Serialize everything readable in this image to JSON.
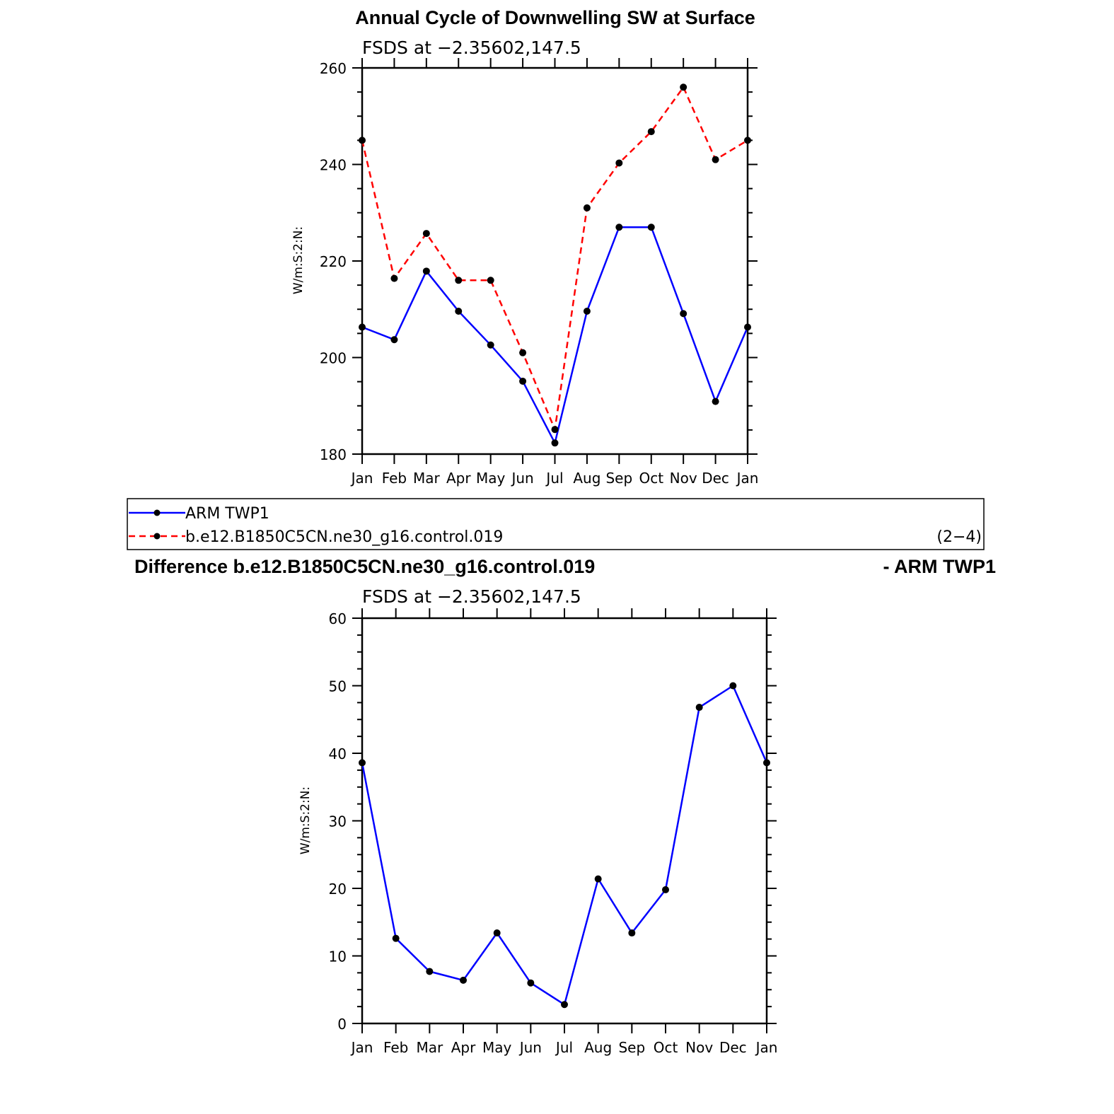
{
  "colors": {
    "obs": "#0000ff",
    "model": "#ff0000",
    "marker": "#000000"
  },
  "chart_data": [
    {
      "type": "line",
      "title": "Annual Cycle of Downwelling SW at Surface",
      "subtitle": "FSDS at −2.35602,147.5",
      "ylabel": "W/m:S:2:N:",
      "ylim": [
        180,
        260
      ],
      "yticks": [
        180,
        200,
        220,
        240,
        260
      ],
      "categories": [
        "Jan",
        "Feb",
        "Mar",
        "Apr",
        "May",
        "Jun",
        "Jul",
        "Aug",
        "Sep",
        "Oct",
        "Nov",
        "Dec",
        "Jan"
      ],
      "series": [
        {
          "name": "ARM TWP1",
          "color": "#0000ff",
          "dash": "solid",
          "values": [
            206.3,
            203.7,
            217.9,
            209.6,
            202.6,
            195.1,
            182.3,
            209.6,
            227.0,
            227.0,
            209.1,
            190.9,
            206.3
          ]
        },
        {
          "name": "b.e12.B1850C5CN.ne30_g16.control.019",
          "color": "#ff0000",
          "dash": "dashed",
          "values": [
            245.0,
            216.4,
            225.7,
            216.0,
            216.0,
            201.0,
            185.1,
            231.0,
            240.3,
            246.8,
            256.0,
            241.0,
            245.0
          ]
        }
      ]
    },
    {
      "type": "line",
      "title": "Difference b.e12.B1850C5CN.ne30_g16.control.019",
      "title_right": "- ARM TWP1",
      "subtitle": "FSDS at −2.35602,147.5",
      "ylabel": "W/m:S:2:N:",
      "ylim": [
        0,
        60
      ],
      "yticks": [
        0,
        10,
        20,
        30,
        40,
        50,
        60
      ],
      "categories": [
        "Jan",
        "Feb",
        "Mar",
        "Apr",
        "May",
        "Jun",
        "Jul",
        "Aug",
        "Sep",
        "Oct",
        "Nov",
        "Dec",
        "Jan"
      ],
      "series": [
        {
          "color": "#0000ff",
          "dash": "solid",
          "values": [
            38.6,
            12.6,
            7.7,
            6.4,
            13.4,
            6.0,
            2.8,
            21.4,
            13.4,
            19.8,
            46.8,
            50.0,
            38.6
          ]
        }
      ]
    }
  ],
  "legend": {
    "items": [
      "ARM TWP1",
      "b.e12.B1850C5CN.ne30_g16.control.019"
    ],
    "panel_label": "(2−4)"
  }
}
